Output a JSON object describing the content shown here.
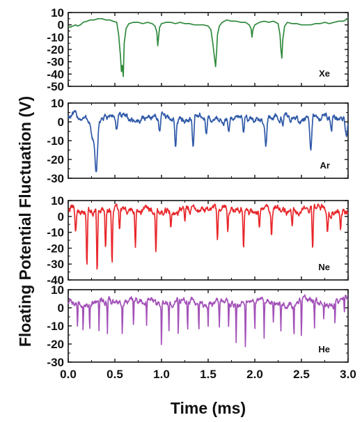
{
  "figure": {
    "ylabel": "Floating Potential Fluctuation (V)",
    "xlabel": "Time (ms)"
  },
  "chart_data": [
    {
      "type": "line",
      "label": "Xe",
      "color": "#2e8a3c",
      "xlim": [
        0.0,
        3.0
      ],
      "ylim": [
        -50,
        10
      ],
      "yticks": [
        10,
        0,
        -10,
        -20,
        -30,
        -40,
        -50
      ],
      "xticks": [
        "0.0",
        "0.5",
        "1.0",
        "1.5",
        "2.0",
        "2.5",
        "3.0"
      ],
      "baseline": 0,
      "noise": 1.2,
      "series": [
        {
          "x": [
            0.0,
            0.02,
            0.05,
            0.08,
            0.1,
            0.13,
            0.16,
            0.2,
            0.24,
            0.28,
            0.32,
            0.36,
            0.4,
            0.44,
            0.48,
            0.52,
            0.54,
            0.56,
            0.57,
            0.58,
            0.59,
            0.6,
            0.62,
            0.65,
            0.7,
            0.75,
            0.8,
            0.85,
            0.9,
            0.93,
            0.95,
            0.96,
            0.97,
            0.98,
            1.0,
            1.05,
            1.1,
            1.15,
            1.2,
            1.25,
            1.3,
            1.35,
            1.4,
            1.45,
            1.5,
            1.53,
            1.55,
            1.57,
            1.58,
            1.59,
            1.6,
            1.62,
            1.65,
            1.7,
            1.75,
            1.8,
            1.85,
            1.9,
            1.94,
            1.96,
            1.97,
            1.98,
            2.0,
            2.05,
            2.1,
            2.15,
            2.2,
            2.25,
            2.27,
            2.28,
            2.29,
            2.3,
            2.32,
            2.35,
            2.4,
            2.45,
            2.5,
            2.55,
            2.6,
            2.65,
            2.7,
            2.75,
            2.8,
            2.85,
            2.9,
            2.95,
            3.0
          ],
          "y": [
            -1,
            -2,
            -1,
            0,
            -1,
            0,
            2,
            3,
            4,
            4,
            5,
            5,
            4,
            4,
            3,
            2,
            -8,
            -25,
            -38,
            -33,
            -42,
            -15,
            -3,
            1,
            2,
            2,
            1,
            2,
            1,
            -1,
            -6,
            -17,
            -9,
            -2,
            1,
            2,
            2,
            1,
            2,
            1,
            1,
            0,
            0,
            0,
            -1,
            -4,
            -15,
            -28,
            -34,
            -22,
            -8,
            -1,
            2,
            4,
            3,
            3,
            2,
            2,
            0,
            -3,
            -10,
            -4,
            0,
            2,
            3,
            2,
            3,
            1,
            -8,
            -20,
            -27,
            -12,
            -1,
            2,
            1,
            1,
            0,
            0,
            0,
            1,
            1,
            2,
            1,
            2,
            3,
            3,
            5
          ]
        }
      ]
    },
    {
      "type": "line",
      "label": "Ar",
      "color": "#2f59a8",
      "xlim": [
        0.0,
        3.0
      ],
      "ylim": [
        -30,
        10
      ],
      "yticks": [
        10,
        0,
        -10,
        -20,
        -30
      ],
      "xticks": [
        "0.0",
        "0.5",
        "1.0",
        "1.5",
        "2.0",
        "2.5",
        "3.0"
      ],
      "baseline": 2,
      "noise": 1.5,
      "dips": [
        {
          "x": 0.3,
          "depth": -28,
          "w": 0.02
        },
        {
          "x": 0.26,
          "depth": -8,
          "w": 0.02
        },
        {
          "x": 0.52,
          "depth": -5,
          "w": 0.015
        },
        {
          "x": 0.98,
          "depth": -6,
          "w": 0.012
        },
        {
          "x": 1.15,
          "depth": -11,
          "w": 0.012
        },
        {
          "x": 1.34,
          "depth": -15,
          "w": 0.012
        },
        {
          "x": 1.48,
          "depth": -7,
          "w": 0.012
        },
        {
          "x": 1.72,
          "depth": -6,
          "w": 0.012
        },
        {
          "x": 1.88,
          "depth": -9,
          "w": 0.012
        },
        {
          "x": 2.12,
          "depth": -9,
          "w": 0.012
        },
        {
          "x": 2.3,
          "depth": -4,
          "w": 0.012
        },
        {
          "x": 2.6,
          "depth": -16,
          "w": 0.015
        },
        {
          "x": 2.82,
          "depth": -7,
          "w": 0.012
        },
        {
          "x": 2.98,
          "depth": -6,
          "w": 0.015
        }
      ]
    },
    {
      "type": "line",
      "label": "Ne",
      "color": "#e8262a",
      "xlim": [
        0.0,
        3.0
      ],
      "ylim": [
        -40,
        10
      ],
      "yticks": [
        10,
        0,
        -10,
        -20,
        -30,
        -40
      ],
      "xticks": [
        "0.0",
        "0.5",
        "1.0",
        "1.5",
        "2.0",
        "2.5",
        "3.0"
      ],
      "baseline": 4,
      "noise": 2,
      "dips": [
        {
          "x": 0.08,
          "depth": -10,
          "w": 0.01
        },
        {
          "x": 0.2,
          "depth": -32,
          "w": 0.008
        },
        {
          "x": 0.31,
          "depth": -34,
          "w": 0.008
        },
        {
          "x": 0.4,
          "depth": -20,
          "w": 0.008
        },
        {
          "x": 0.47,
          "depth": -31,
          "w": 0.008
        },
        {
          "x": 0.55,
          "depth": -10,
          "w": 0.008
        },
        {
          "x": 0.72,
          "depth": -17,
          "w": 0.008
        },
        {
          "x": 0.94,
          "depth": -24,
          "w": 0.008
        },
        {
          "x": 1.1,
          "depth": -8,
          "w": 0.008
        },
        {
          "x": 1.25,
          "depth": -5,
          "w": 0.008
        },
        {
          "x": 1.6,
          "depth": -17,
          "w": 0.008
        },
        {
          "x": 1.71,
          "depth": -8,
          "w": 0.008
        },
        {
          "x": 1.88,
          "depth": -18,
          "w": 0.008
        },
        {
          "x": 2.05,
          "depth": -8,
          "w": 0.008
        },
        {
          "x": 2.18,
          "depth": -10,
          "w": 0.008
        },
        {
          "x": 2.4,
          "depth": -6,
          "w": 0.008
        },
        {
          "x": 2.62,
          "depth": -24,
          "w": 0.008
        },
        {
          "x": 2.78,
          "depth": -7,
          "w": 0.008
        },
        {
          "x": 2.92,
          "depth": -6,
          "w": 0.008
        }
      ]
    },
    {
      "type": "line",
      "label": "He",
      "color": "#a352b8",
      "xlim": [
        0.0,
        3.0
      ],
      "ylim": [
        -30,
        10
      ],
      "yticks": [
        10,
        0,
        -10,
        -20,
        -30
      ],
      "xticks": [
        "0.0",
        "0.5",
        "1.0",
        "1.5",
        "2.0",
        "2.5",
        "3.0"
      ],
      "baseline": 3,
      "noise": 1.6,
      "dips": [
        {
          "x": 0.1,
          "depth": -10,
          "w": 0.004
        },
        {
          "x": 0.16,
          "depth": -12,
          "w": 0.004
        },
        {
          "x": 0.23,
          "depth": -12,
          "w": 0.004
        },
        {
          "x": 0.33,
          "depth": -13,
          "w": 0.004
        },
        {
          "x": 0.42,
          "depth": -16,
          "w": 0.004
        },
        {
          "x": 0.58,
          "depth": -15,
          "w": 0.004
        },
        {
          "x": 0.7,
          "depth": -12,
          "w": 0.004
        },
        {
          "x": 0.84,
          "depth": -10,
          "w": 0.004
        },
        {
          "x": 1.0,
          "depth": -22,
          "w": 0.004
        },
        {
          "x": 1.08,
          "depth": -12,
          "w": 0.004
        },
        {
          "x": 1.18,
          "depth": -18,
          "w": 0.004
        },
        {
          "x": 1.28,
          "depth": -12,
          "w": 0.004
        },
        {
          "x": 1.4,
          "depth": -15,
          "w": 0.004
        },
        {
          "x": 1.5,
          "depth": -10,
          "w": 0.004
        },
        {
          "x": 1.62,
          "depth": -11,
          "w": 0.004
        },
        {
          "x": 1.72,
          "depth": -12,
          "w": 0.004
        },
        {
          "x": 1.8,
          "depth": -18,
          "w": 0.004
        },
        {
          "x": 1.9,
          "depth": -24,
          "w": 0.004
        },
        {
          "x": 2.0,
          "depth": -12,
          "w": 0.004
        },
        {
          "x": 2.1,
          "depth": -17,
          "w": 0.004
        },
        {
          "x": 2.2,
          "depth": -9,
          "w": 0.004
        },
        {
          "x": 2.28,
          "depth": -12,
          "w": 0.004
        },
        {
          "x": 2.42,
          "depth": -15,
          "w": 0.004
        },
        {
          "x": 2.5,
          "depth": -20,
          "w": 0.004
        },
        {
          "x": 2.64,
          "depth": -12,
          "w": 0.004
        },
        {
          "x": 2.74,
          "depth": -7,
          "w": 0.004
        },
        {
          "x": 2.86,
          "depth": -9,
          "w": 0.004
        },
        {
          "x": 2.96,
          "depth": -6,
          "w": 0.004
        }
      ]
    }
  ]
}
